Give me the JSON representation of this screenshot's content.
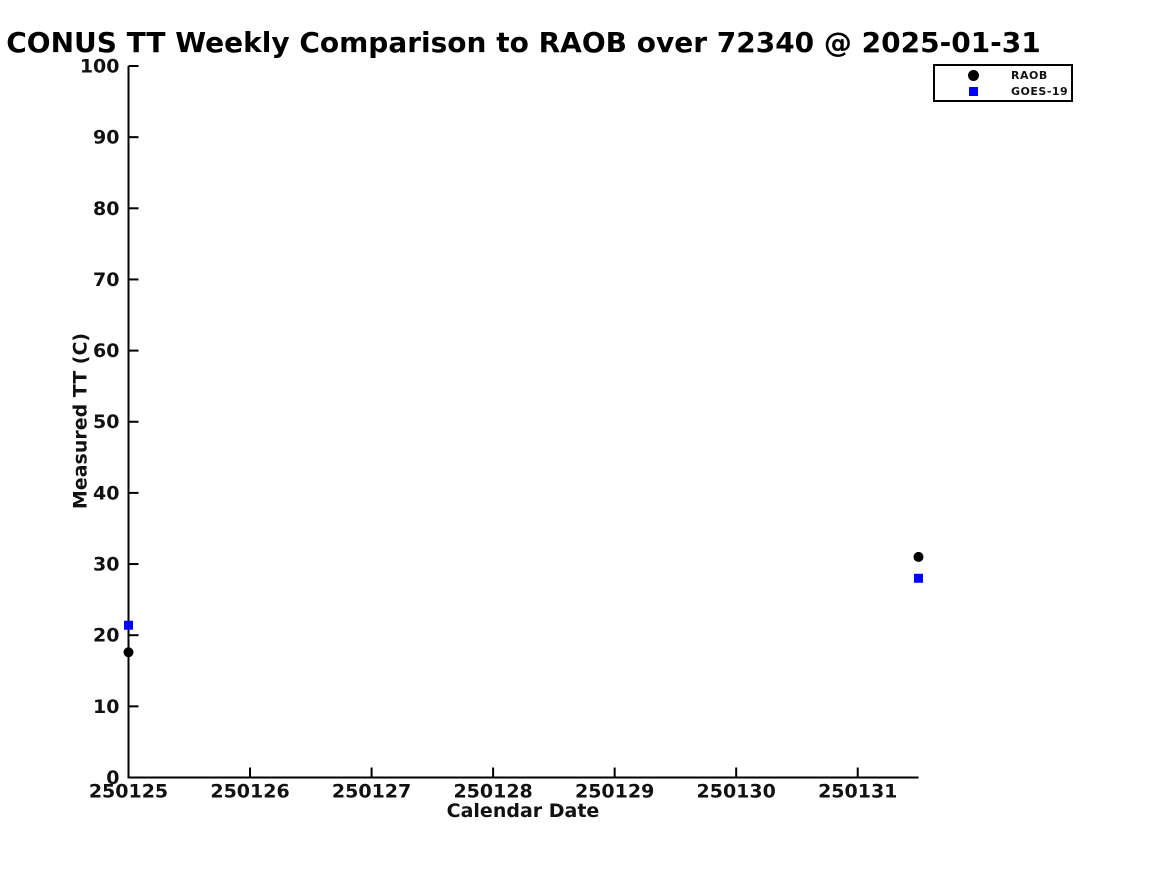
{
  "chart_data": {
    "type": "scatter",
    "title": "CONUS TT Weekly Comparison to RAOB over 72340 @ 2025-01-31",
    "xlabel": "Calendar Date",
    "ylabel": "Measured TT (C)",
    "xlim": [
      250125,
      250131.5
    ],
    "ylim": [
      0,
      100
    ],
    "xticks": [
      250125,
      250126,
      250127,
      250128,
      250129,
      250130,
      250131
    ],
    "yticks": [
      0,
      10,
      20,
      30,
      40,
      50,
      60,
      70,
      80,
      90,
      100
    ],
    "grid": false,
    "background": "#ffffff",
    "axis_color": "#000000",
    "tick_direction": "in",
    "legend": {
      "position": "upper-right-outside-axes",
      "border_color": "#000000",
      "entries": [
        "RAOB",
        "GOES-19"
      ]
    },
    "series": [
      {
        "name": "RAOB",
        "marker": "circle",
        "color": "#000000",
        "x": [
          250125.0,
          250131.5
        ],
        "y": [
          17.6,
          31.0
        ]
      },
      {
        "name": "GOES-19",
        "marker": "square",
        "color": "#0000ff",
        "x": [
          250125.0,
          250131.5
        ],
        "y": [
          21.4,
          28.0
        ]
      }
    ]
  }
}
